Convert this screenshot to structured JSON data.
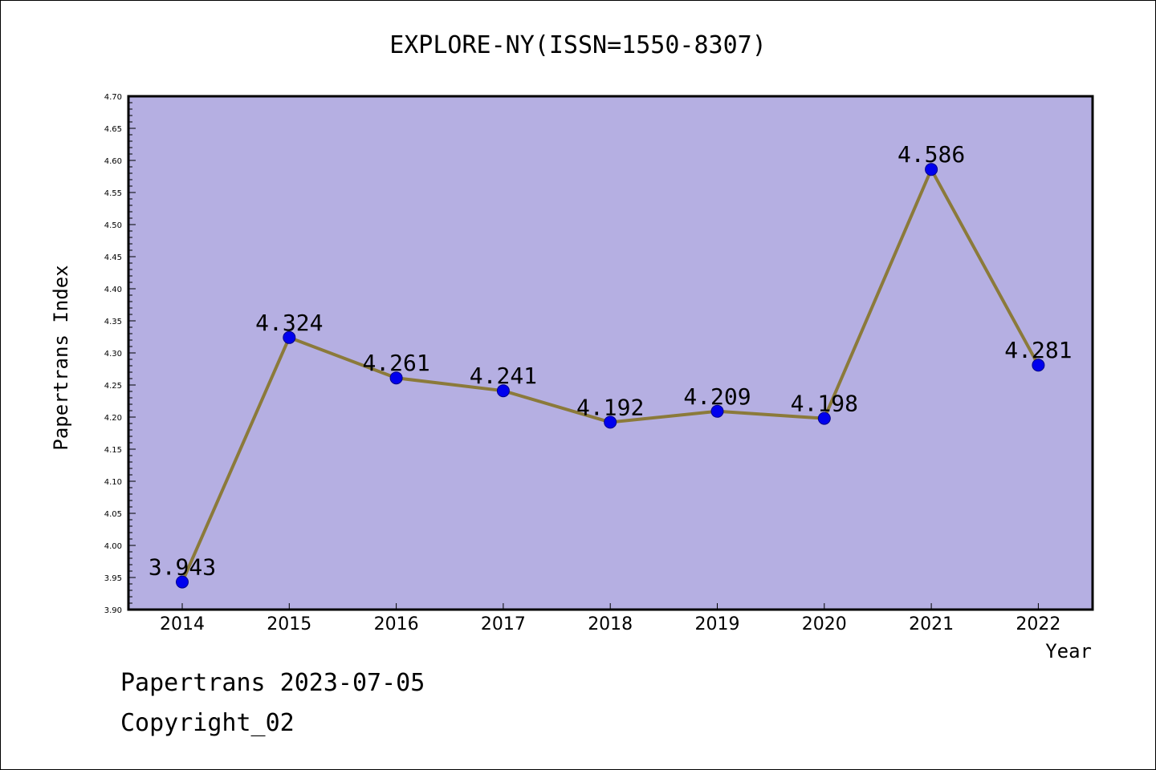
{
  "chart_data": {
    "type": "line",
    "title": "EXPLORE-NY(ISSN=1550-8307)",
    "xlabel": "Year",
    "ylabel": "Papertrans Index",
    "categories": [
      "2014",
      "2015",
      "2016",
      "2017",
      "2018",
      "2019",
      "2020",
      "2021",
      "2022"
    ],
    "series": [
      {
        "values": [
          3.943,
          4.324,
          4.261,
          4.241,
          4.192,
          4.209,
          4.198,
          4.586,
          4.281
        ],
        "labels": [
          "3.943",
          "4.324",
          "4.261",
          "4.241",
          "4.192",
          "4.209",
          "4.198",
          "4.586",
          "4.281"
        ]
      }
    ],
    "ylim": [
      3.9,
      4.7
    ],
    "yticks": [
      "3.90",
      "3.95",
      "4.00",
      "4.05",
      "4.10",
      "4.15",
      "4.20",
      "4.25",
      "4.30",
      "4.35",
      "4.40",
      "4.45",
      "4.50",
      "4.55",
      "4.60",
      "4.65",
      "4.70"
    ],
    "grid": false,
    "legend": "none",
    "colors": {
      "plot_background": "#b5afe2",
      "line": "#8b7a3a",
      "marker": "#0000ee",
      "axis": "#000000"
    }
  },
  "footer": {
    "date_line": "Papertrans 2023-07-05",
    "copyright_line": "Copyright_02"
  }
}
